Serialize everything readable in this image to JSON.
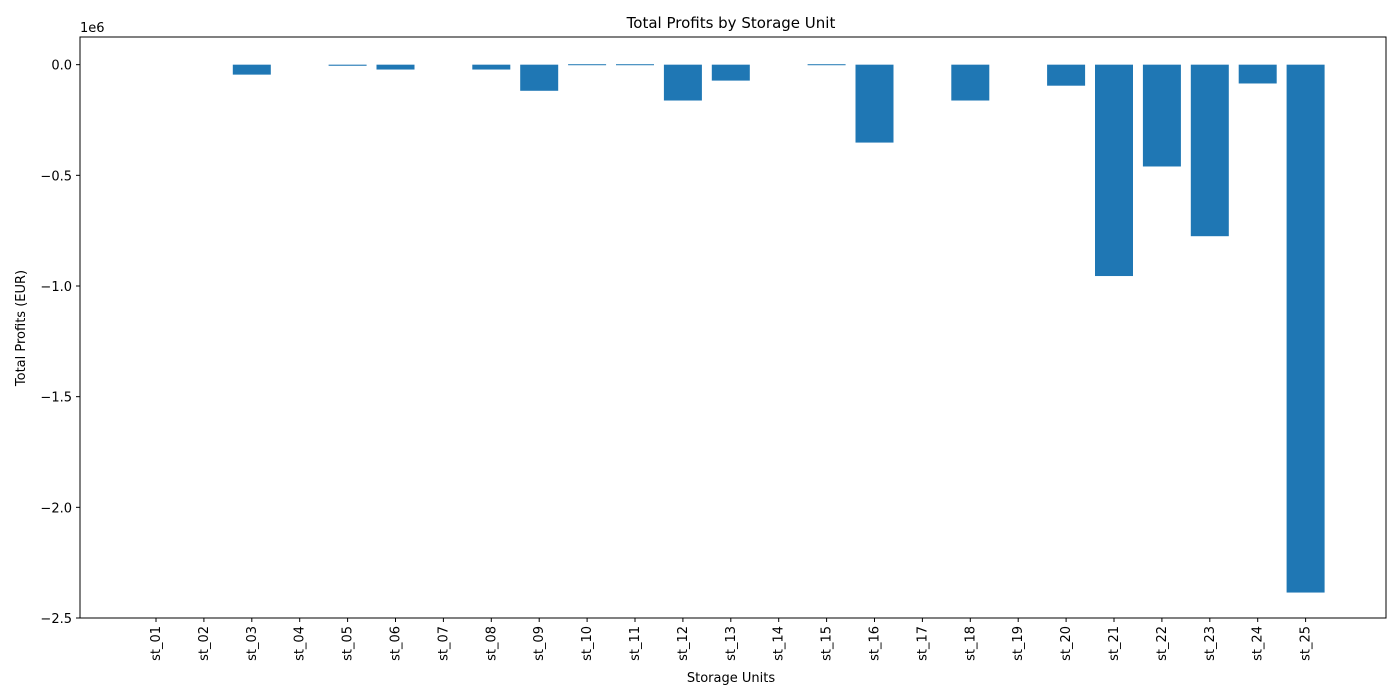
{
  "chart_data": {
    "type": "bar",
    "title": "Total Profits by Storage Unit",
    "xlabel": "Storage Units",
    "ylabel": "Total Profits (EUR)",
    "y_multiplier_label": "1e6",
    "categories": [
      "st_01",
      "st_02",
      "st_03",
      "st_04",
      "st_05",
      "st_06",
      "st_07",
      "st_08",
      "st_09",
      "st_10",
      "st_11",
      "st_12",
      "st_13",
      "st_14",
      "st_15",
      "st_16",
      "st_17",
      "st_18",
      "st_19",
      "st_20",
      "st_21",
      "st_22",
      "st_23",
      "st_24",
      "st_25"
    ],
    "values": [
      0,
      0,
      -45000,
      0,
      -5000,
      -22000,
      0,
      -22000,
      -118000,
      2000,
      2000,
      -162000,
      -72000,
      0,
      2000,
      -352000,
      0,
      -162000,
      0,
      -95000,
      -955000,
      -460000,
      -775000,
      -85000,
      -2385000
    ],
    "ylim": [
      -2500000,
      125000
    ],
    "yticks": [
      0,
      -500000,
      -1000000,
      -1500000,
      -2000000,
      -2500000
    ],
    "ytick_labels": [
      "0.0",
      "−0.5",
      "−1.0",
      "−1.5",
      "−2.0",
      "−2.5"
    ],
    "bar_color": "#1f77b4",
    "grid": false
  }
}
